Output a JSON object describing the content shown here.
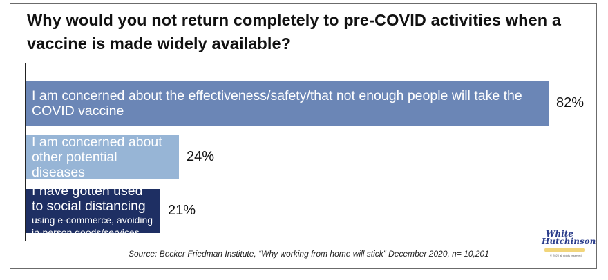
{
  "chart_data": {
    "type": "bar",
    "orientation": "horizontal",
    "title": "Why would you not return completely to pre-COVID activities when a vaccine is made widely available?",
    "categories": [
      "I am concerned about the effectiveness/safety/that not enough people will take the COVID vaccine",
      "I am concerned about other potential diseases",
      "I have gotten used to social distancing using e-commerce, avoiding in-person goods/services"
    ],
    "category_lines": [
      {
        "main": "I am concerned about the effectiveness/safety/that not enough people will take the COVID vaccine",
        "sub": ""
      },
      {
        "main": "I am concerned about other potential diseases",
        "sub": ""
      },
      {
        "main": "I have gotten used to social distancing",
        "sub": "using e-commerce, avoiding in-person goods/services"
      }
    ],
    "values": [
      82,
      24,
      21
    ],
    "value_labels": [
      "82%",
      "24%",
      "21%"
    ],
    "colors": [
      "#6b86b6",
      "#97b5d6",
      "#1e2f63"
    ],
    "xlim": [
      0,
      100
    ],
    "source": "Source: Becker Friedman Institute, “Why working from home will stick” December 2020, n= 10,201"
  },
  "logo": {
    "line1": "White",
    "line2": "Hutchinson",
    "tagline": "LEISURE & LEARNING GROUP",
    "copyright": "© 2020 all rights reserved"
  }
}
